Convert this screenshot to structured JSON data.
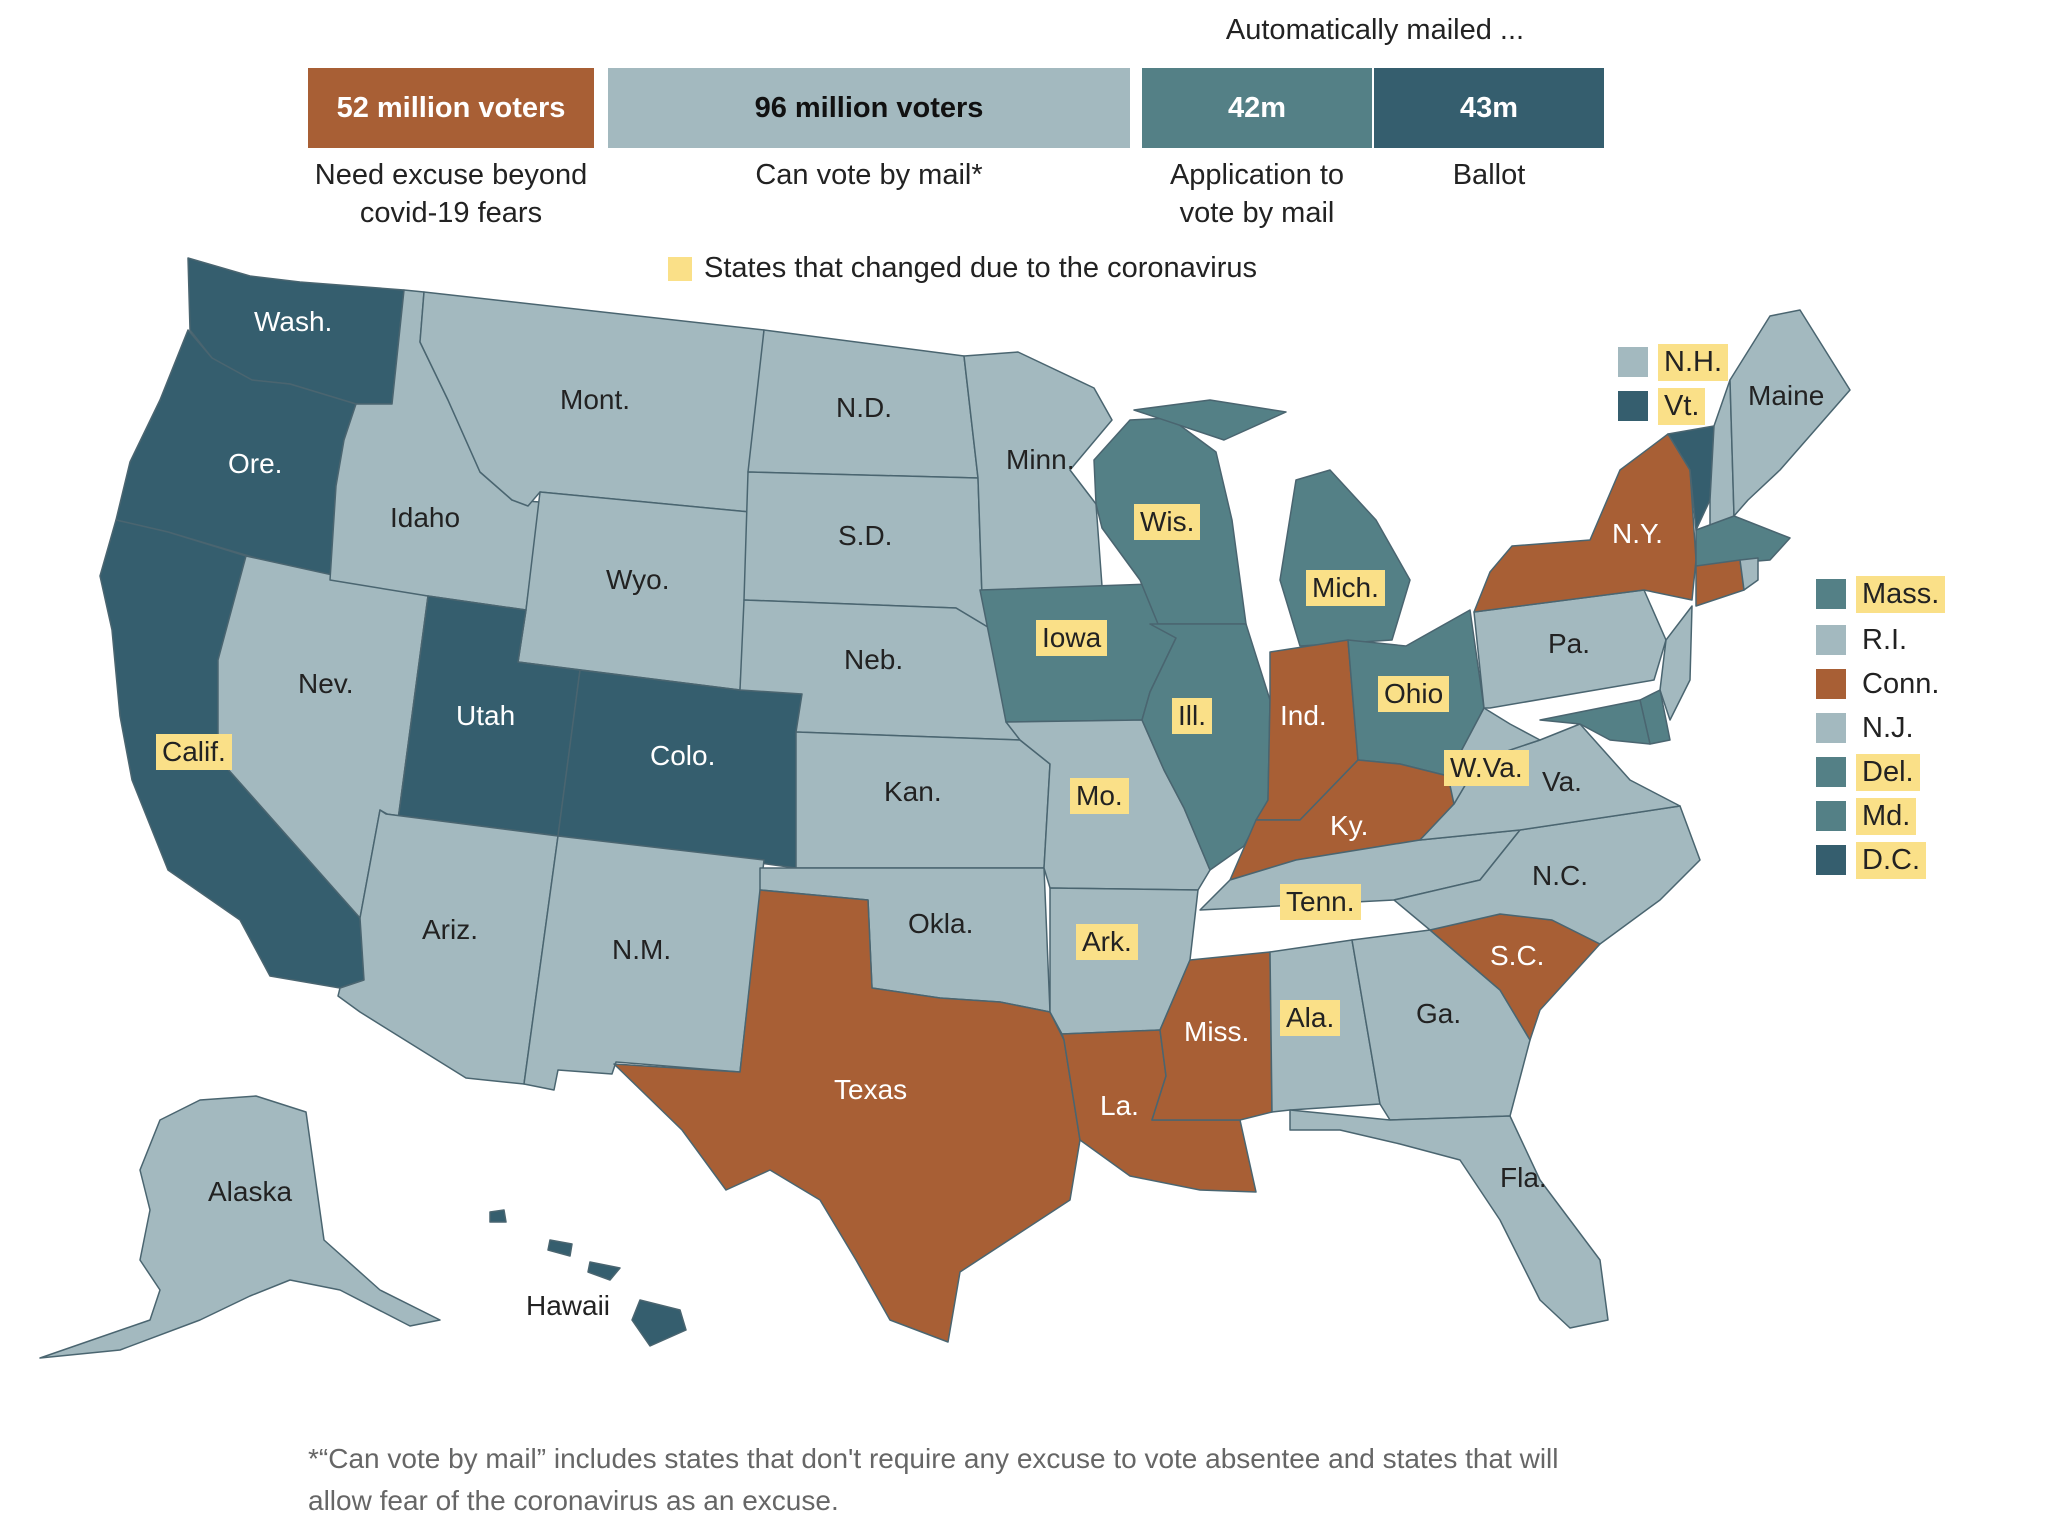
{
  "header": {
    "auto_title": "Automatically mailed ...",
    "legend_changed": "States that changed due to the coronavirus"
  },
  "bars": [
    {
      "label": "52 million voters",
      "caption": "Need excuse beyond covid-19 fears",
      "color": "#a85f35",
      "text_color": "#ffffff"
    },
    {
      "label": "96 million voters",
      "caption": "Can vote by mail*",
      "color": "#a3b9bf",
      "text_color": "#111111"
    },
    {
      "label": "42m",
      "caption": "Application to vote by mail",
      "color": "#548086",
      "text_color": "#ffffff"
    },
    {
      "label": "43m",
      "caption": "Ballot",
      "color": "#355e6e",
      "text_color": "#ffffff"
    }
  ],
  "colors": {
    "excuse": "#a85f35",
    "can_vote": "#a3b9bf",
    "application": "#548086",
    "ballot": "#355e6e",
    "changed_highlight": "#fae088",
    "border": "#ffffff"
  },
  "map": {
    "states": [
      {
        "name": "Wash.",
        "category": "ballot",
        "changed": false
      },
      {
        "name": "Ore.",
        "category": "ballot",
        "changed": false
      },
      {
        "name": "Calif.",
        "category": "ballot",
        "changed": true
      },
      {
        "name": "Nev.",
        "category": "can_vote",
        "changed": false
      },
      {
        "name": "Idaho",
        "category": "can_vote",
        "changed": false
      },
      {
        "name": "Mont.",
        "category": "can_vote",
        "changed": false
      },
      {
        "name": "Wyo.",
        "category": "can_vote",
        "changed": false
      },
      {
        "name": "Utah",
        "category": "ballot",
        "changed": false
      },
      {
        "name": "Colo.",
        "category": "ballot",
        "changed": false
      },
      {
        "name": "Ariz.",
        "category": "can_vote",
        "changed": false
      },
      {
        "name": "N.M.",
        "category": "can_vote",
        "changed": false
      },
      {
        "name": "N.D.",
        "category": "can_vote",
        "changed": false
      },
      {
        "name": "S.D.",
        "category": "can_vote",
        "changed": false
      },
      {
        "name": "Neb.",
        "category": "can_vote",
        "changed": false
      },
      {
        "name": "Kan.",
        "category": "can_vote",
        "changed": false
      },
      {
        "name": "Okla.",
        "category": "can_vote",
        "changed": false
      },
      {
        "name": "Texas",
        "category": "excuse",
        "changed": false
      },
      {
        "name": "Minn.",
        "category": "can_vote",
        "changed": false
      },
      {
        "name": "Iowa",
        "category": "application",
        "changed": true
      },
      {
        "name": "Mo.",
        "category": "can_vote",
        "changed": true
      },
      {
        "name": "Ark.",
        "category": "can_vote",
        "changed": true
      },
      {
        "name": "La.",
        "category": "excuse",
        "changed": false
      },
      {
        "name": "Wis.",
        "category": "application",
        "changed": true
      },
      {
        "name": "Ill.",
        "category": "application",
        "changed": true
      },
      {
        "name": "Mich.",
        "category": "application",
        "changed": true
      },
      {
        "name": "Ind.",
        "category": "excuse",
        "changed": false
      },
      {
        "name": "Ohio",
        "category": "application",
        "changed": true
      },
      {
        "name": "Ky.",
        "category": "excuse",
        "changed": false
      },
      {
        "name": "Tenn.",
        "category": "can_vote",
        "changed": true
      },
      {
        "name": "Miss.",
        "category": "excuse",
        "changed": false
      },
      {
        "name": "Ala.",
        "category": "can_vote",
        "changed": true
      },
      {
        "name": "Ga.",
        "category": "can_vote",
        "changed": false
      },
      {
        "name": "Fla.",
        "category": "can_vote",
        "changed": false
      },
      {
        "name": "S.C.",
        "category": "excuse",
        "changed": false
      },
      {
        "name": "N.C.",
        "category": "can_vote",
        "changed": false
      },
      {
        "name": "Va.",
        "category": "can_vote",
        "changed": false
      },
      {
        "name": "W.Va.",
        "category": "can_vote",
        "changed": true
      },
      {
        "name": "Pa.",
        "category": "can_vote",
        "changed": false
      },
      {
        "name": "N.Y.",
        "category": "excuse",
        "changed": false
      },
      {
        "name": "Maine",
        "category": "can_vote",
        "changed": false
      },
      {
        "name": "Alaska",
        "category": "can_vote",
        "changed": false
      },
      {
        "name": "Hawaii",
        "category": "ballot",
        "changed": false
      }
    ],
    "top_legend": [
      {
        "name": "N.H.",
        "category": "can_vote",
        "changed": true
      },
      {
        "name": "Vt.",
        "category": "ballot",
        "changed": true
      }
    ],
    "side_legend": [
      {
        "name": "Mass.",
        "category": "application",
        "changed": true
      },
      {
        "name": "R.I.",
        "category": "can_vote",
        "changed": false
      },
      {
        "name": "Conn.",
        "category": "excuse",
        "changed": false
      },
      {
        "name": "N.J.",
        "category": "can_vote",
        "changed": false
      },
      {
        "name": "Del.",
        "category": "application",
        "changed": true
      },
      {
        "name": "Md.",
        "category": "application",
        "changed": true
      },
      {
        "name": "D.C.",
        "category": "ballot",
        "changed": true
      }
    ]
  },
  "footnote": "*“Can vote by mail” includes states that don't require any excuse to vote absentee and states that will allow fear of the coronavirus as an excuse."
}
